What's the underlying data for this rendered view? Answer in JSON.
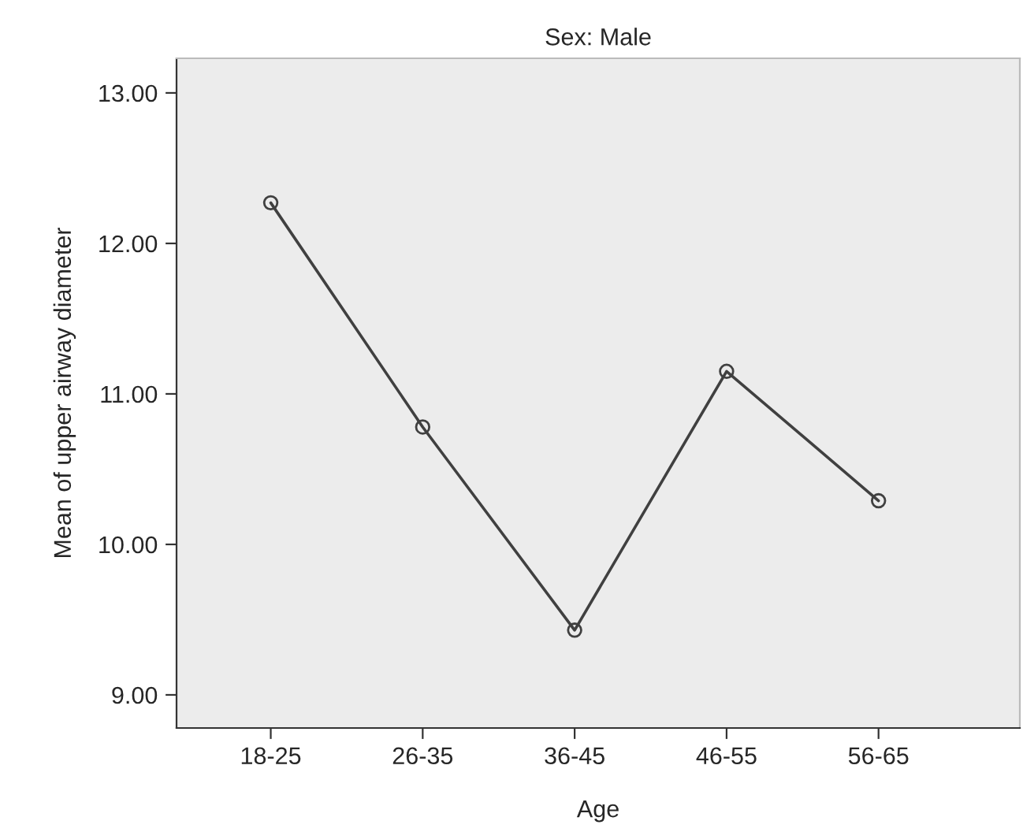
{
  "chart_data": {
    "type": "line",
    "title": "Sex: Male",
    "xlabel": "Age",
    "ylabel": "Mean of upper airway diameter",
    "categories": [
      "18-25",
      "26-35",
      "36-45",
      "46-55",
      "56-65"
    ],
    "series": [
      {
        "color": "#404040",
        "values": [
          12.27,
          10.78,
          9.43,
          11.15,
          10.29
        ]
      }
    ],
    "ylim": [
      8.78,
      13.23
    ],
    "yticks": [
      {
        "value": 9,
        "label": "9.00"
      },
      {
        "value": 10,
        "label": "10.00"
      },
      {
        "value": 11,
        "label": "11.00"
      },
      {
        "value": 12,
        "label": "12.00"
      },
      {
        "value": 13,
        "label": "13.00"
      }
    ],
    "marker": "circle",
    "line_style": "solid",
    "grid": false
  }
}
